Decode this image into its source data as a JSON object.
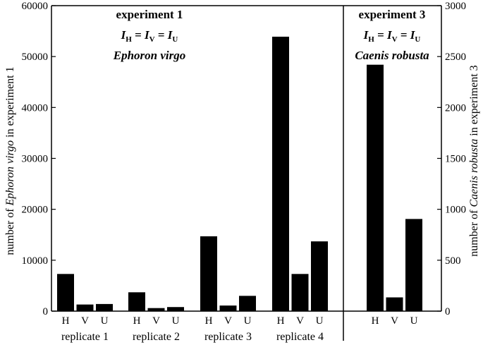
{
  "chart_data": [
    {
      "type": "bar",
      "title": "experiment 1",
      "condition": [
        "I",
        "H",
        " = ",
        "I",
        "V",
        " = ",
        "I",
        "U"
      ],
      "species": "Ephoron virgo",
      "ylabel": [
        "number of ",
        "Ephoron virgo",
        " in experiment 1"
      ],
      "ylim": [
        0,
        60000
      ],
      "yticks": [
        0,
        10000,
        20000,
        30000,
        40000,
        50000,
        60000
      ],
      "categories": [
        "H",
        "V",
        "U"
      ],
      "groups": [
        {
          "name": "replicate 1",
          "values": [
            7300,
            1300,
            1400
          ]
        },
        {
          "name": "replicate 2",
          "values": [
            3700,
            600,
            800
          ]
        },
        {
          "name": "replicate 3",
          "values": [
            14700,
            1100,
            3000
          ]
        },
        {
          "name": "replicate 4",
          "values": [
            53900,
            7300,
            13700
          ]
        }
      ],
      "bar_color": "#000000"
    },
    {
      "type": "bar",
      "title": "experiment 3",
      "condition": [
        "I",
        "H",
        " = ",
        "I",
        "V",
        " = ",
        "I",
        "U"
      ],
      "species": "Caenis robusta",
      "ylabel": [
        "number of ",
        "Caenis robusta",
        " in experiment 3"
      ],
      "ylim": [
        0,
        3000
      ],
      "yticks": [
        0,
        500,
        1000,
        1500,
        2000,
        2500,
        3000
      ],
      "categories": [
        "H",
        "V",
        "U"
      ],
      "groups": [
        {
          "name": "",
          "values": [
            2420,
            135,
            905
          ]
        }
      ],
      "bar_color": "#000000"
    }
  ]
}
